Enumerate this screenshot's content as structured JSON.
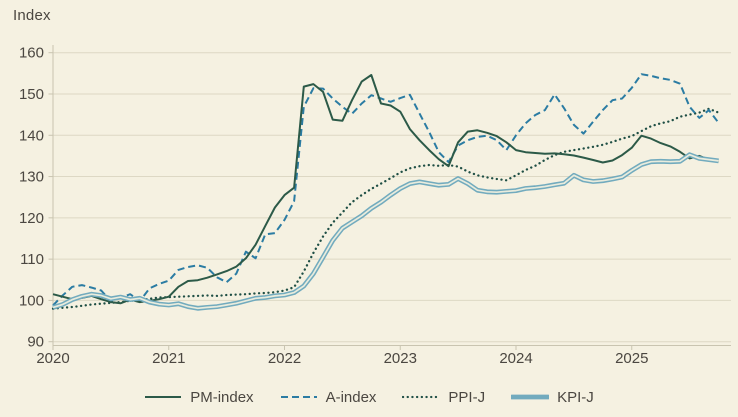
{
  "page": {
    "background_color": "#f5f1e1",
    "text_color": "#4b4741",
    "grid_color": "#ddd8c4",
    "axis_color": "#c9c4b0"
  },
  "chart_data": {
    "type": "line",
    "title": "Index",
    "frequency": "monthly",
    "x_start_year": 2020,
    "x_start_month": 1,
    "x_tick_labels": [
      "2020",
      "2021",
      "2022",
      "2023",
      "2024",
      "2025"
    ],
    "y_ticks": [
      90,
      100,
      110,
      120,
      130,
      140,
      150,
      160
    ],
    "ylim": [
      90,
      160
    ],
    "grid": "horizontal",
    "legend_position": "bottom",
    "series": [
      {
        "name": "PM-index",
        "style": "solid",
        "color": "#2c5a48",
        "values": [
          101.5,
          100.9,
          100.3,
          100.6,
          101.1,
          100.3,
          99.6,
          99.3,
          100.2,
          99.6,
          99.9,
          100.3,
          100.9,
          103.3,
          104.7,
          104.9,
          105.5,
          106.3,
          107.1,
          108.2,
          110.2,
          113.5,
          118.0,
          122.5,
          125.5,
          127.3,
          151.8,
          152.4,
          150.5,
          143.8,
          143.5,
          148.5,
          153.0,
          154.6,
          147.7,
          147.2,
          145.7,
          141.5,
          138.8,
          136.4,
          134.2,
          132.5,
          138.3,
          140.9,
          141.2,
          140.6,
          139.8,
          138.3,
          136.4,
          135.9,
          135.7,
          135.5,
          135.6,
          135.4,
          135.1,
          134.6,
          134.0,
          133.4,
          133.9,
          135.2,
          137.0,
          139.9,
          139.2,
          138.1,
          137.3,
          136.0,
          134.4,
          135.0,
          134.1,
          133.6
        ]
      },
      {
        "name": "A-index",
        "style": "dashed",
        "color": "#2b7ca3",
        "values": [
          98.8,
          101.2,
          103.3,
          103.7,
          103.1,
          102.4,
          99.8,
          100.6,
          101.5,
          99.8,
          102.9,
          104.0,
          104.8,
          107.4,
          108.1,
          108.5,
          107.9,
          105.6,
          104.4,
          106.5,
          111.8,
          110.2,
          116.0,
          116.3,
          119.5,
          124.0,
          146.9,
          151.4,
          151.3,
          148.9,
          146.9,
          145.2,
          147.7,
          149.7,
          148.9,
          148.1,
          149.0,
          149.8,
          145.3,
          140.8,
          135.9,
          133.5,
          137.5,
          138.8,
          139.6,
          139.9,
          138.8,
          136.4,
          140.0,
          142.9,
          144.9,
          146.1,
          149.9,
          146.5,
          142.5,
          140.4,
          143.3,
          146.1,
          148.5,
          148.9,
          151.5,
          154.8,
          154.4,
          153.8,
          153.4,
          152.5,
          146.9,
          144.2,
          146.1,
          143.0
        ]
      },
      {
        "name": "PPI-J",
        "style": "dotted",
        "color": "#1f4f45",
        "values": [
          98.0,
          98.2,
          98.4,
          98.7,
          99.0,
          99.2,
          99.4,
          99.6,
          99.9,
          100.1,
          100.4,
          100.7,
          100.8,
          100.9,
          101.0,
          101.1,
          101.2,
          101.1,
          101.3,
          101.4,
          101.5,
          101.7,
          101.8,
          102.0,
          102.4,
          103.2,
          107.0,
          111.5,
          115.5,
          118.8,
          121.3,
          123.8,
          125.5,
          127.0,
          128.3,
          129.6,
          131.0,
          132.0,
          132.5,
          132.8,
          132.6,
          132.8,
          132.4,
          131.2,
          130.3,
          129.8,
          129.4,
          129.1,
          130.3,
          131.6,
          132.6,
          134.0,
          135.2,
          136.0,
          136.4,
          136.8,
          137.2,
          137.7,
          138.4,
          139.2,
          139.8,
          141.0,
          142.2,
          142.9,
          143.4,
          144.5,
          145.0,
          145.5,
          146.4,
          145.5
        ]
      },
      {
        "name": "KPI-J",
        "style": "thick",
        "color": "#72abbe",
        "values": [
          98.3,
          99.0,
          100.2,
          101.0,
          101.5,
          101.2,
          100.4,
          100.8,
          100.2,
          100.5,
          99.6,
          99.1,
          98.9,
          99.2,
          98.5,
          98.1,
          98.3,
          98.5,
          98.9,
          99.3,
          99.9,
          100.5,
          100.7,
          101.1,
          101.3,
          101.9,
          103.5,
          106.5,
          110.5,
          114.5,
          117.5,
          119.0,
          120.5,
          122.3,
          123.8,
          125.5,
          127.1,
          128.3,
          128.7,
          128.3,
          127.9,
          128.1,
          129.5,
          128.3,
          126.7,
          126.3,
          126.2,
          126.4,
          126.6,
          127.1,
          127.3,
          127.6,
          128.0,
          128.4,
          130.3,
          129.2,
          128.8,
          129.0,
          129.4,
          129.9,
          131.5,
          132.9,
          133.6,
          133.7,
          133.6,
          133.7,
          135.3,
          134.4,
          134.1,
          133.8
        ]
      }
    ]
  }
}
